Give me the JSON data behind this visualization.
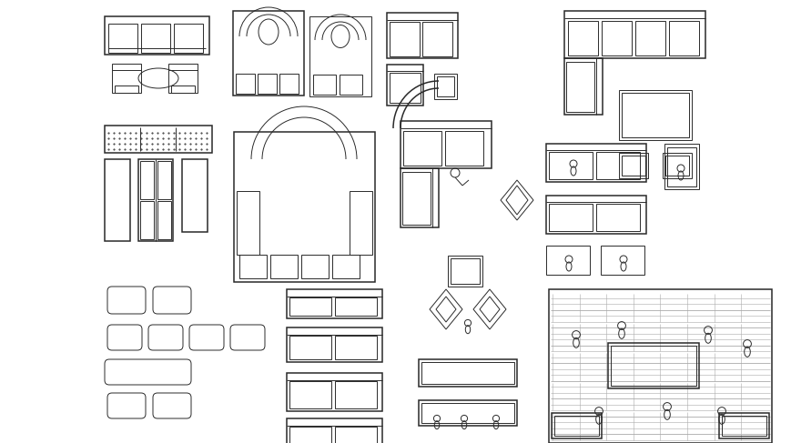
{
  "bg_color": "#ffffff",
  "line_color": "#2a2a2a",
  "lw": 0.7,
  "lw2": 1.1,
  "fig_w": 8.7,
  "fig_h": 4.87,
  "dpi": 100
}
